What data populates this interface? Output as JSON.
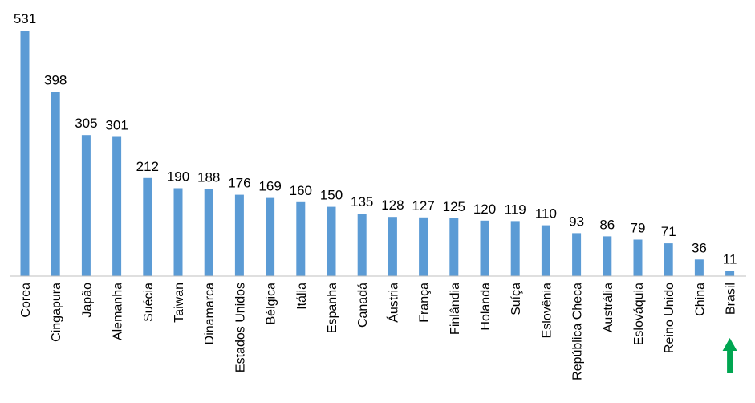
{
  "chart_data": {
    "type": "bar",
    "categories": [
      "Corea",
      "Cingapura",
      "Japão",
      "Alemanha",
      "Suécia",
      "Taiwan",
      "Dinamarca",
      "Estados Unidos",
      "Bélgica",
      "Itália",
      "Espanha",
      "Canadá",
      "Áustria",
      "França",
      "Finlândia",
      "Holanda",
      "Suíça",
      "Eslovênia",
      "República Checa",
      "Austrália",
      "Eslováquia",
      "Reino Unido",
      "China",
      "Brasil"
    ],
    "values": [
      531,
      398,
      305,
      301,
      212,
      190,
      188,
      176,
      169,
      160,
      150,
      135,
      128,
      127,
      125,
      120,
      119,
      110,
      93,
      86,
      79,
      71,
      36,
      11
    ],
    "title": "",
    "xlabel": "",
    "ylabel": "",
    "ylim": [
      0,
      531
    ],
    "grid": false,
    "legend": "none",
    "bar_color": "#5b9bd5",
    "axis_color": "#bfbfbf",
    "annotation": {
      "icon": "up-arrow-icon",
      "target": "Brasil",
      "color": "#00a651"
    }
  }
}
